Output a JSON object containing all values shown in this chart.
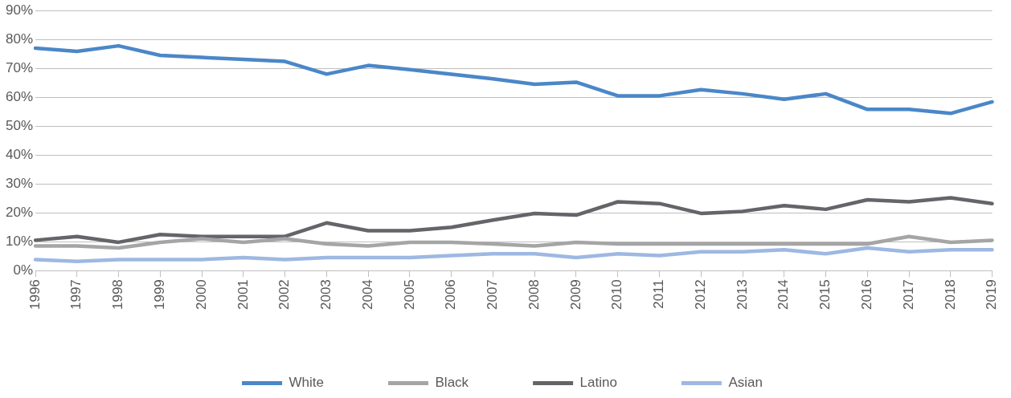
{
  "chart_data": {
    "type": "line",
    "categories": [
      "1996",
      "1997",
      "1998",
      "1999",
      "2000",
      "2001",
      "2002",
      "2003",
      "2004",
      "2005",
      "2006",
      "2007",
      "2008",
      "2009",
      "2010",
      "2011",
      "2012",
      "2013",
      "2014",
      "2015",
      "2016",
      "2017",
      "2018",
      "2019"
    ],
    "series": [
      {
        "name": "White",
        "color": "#4a87c8",
        "values": [
          77,
          75.9,
          77.8,
          74.5,
          73.8,
          73.1,
          72.4,
          68,
          71,
          69.6,
          68,
          66.4,
          64.5,
          65.2,
          60.5,
          60.5,
          62.6,
          61.2,
          59.3,
          61.2,
          55.8,
          55.8,
          54.4,
          58.4
        ]
      },
      {
        "name": "Black",
        "color": "#a5a5a5",
        "values": [
          8.5,
          8.5,
          7.8,
          9.8,
          11,
          9.8,
          11,
          9.2,
          8.5,
          9.8,
          9.8,
          9.2,
          8.5,
          9.8,
          9.2,
          9.2,
          9.2,
          9.2,
          9.2,
          9.2,
          9.2,
          11.8,
          9.8,
          10.5
        ]
      },
      {
        "name": "Latino",
        "color": "#636569",
        "values": [
          10.5,
          11.8,
          9.8,
          12.5,
          11.8,
          11.8,
          11.8,
          16.5,
          13.8,
          13.8,
          15,
          17.5,
          19.8,
          19.2,
          23.8,
          23.2,
          19.8,
          20.5,
          22.5,
          21.2,
          24.5,
          23.8,
          25.2,
          23.2
        ]
      },
      {
        "name": "Asian",
        "color": "#9db8e2",
        "values": [
          3.8,
          3.2,
          3.8,
          3.8,
          3.8,
          4.5,
          3.8,
          4.5,
          4.5,
          4.5,
          5.2,
          5.8,
          5.8,
          4.5,
          5.8,
          5.2,
          6.5,
          6.5,
          7.2,
          5.8,
          7.8,
          6.5,
          7.2,
          7.2
        ]
      }
    ],
    "ylim": [
      0,
      90
    ],
    "yticks": [
      {
        "value": 0,
        "label": "0%"
      },
      {
        "value": 10,
        "label": "10%"
      },
      {
        "value": 20,
        "label": "20%"
      },
      {
        "value": 30,
        "label": "30%"
      },
      {
        "value": 40,
        "label": "40%"
      },
      {
        "value": 50,
        "label": "50%"
      },
      {
        "value": 60,
        "label": "60%"
      },
      {
        "value": 70,
        "label": "70%"
      },
      {
        "value": 80,
        "label": "80%"
      },
      {
        "value": 90,
        "label": "90%"
      }
    ],
    "grid": "y",
    "legend": "bottom",
    "marker": "none",
    "line_style": "solid"
  }
}
